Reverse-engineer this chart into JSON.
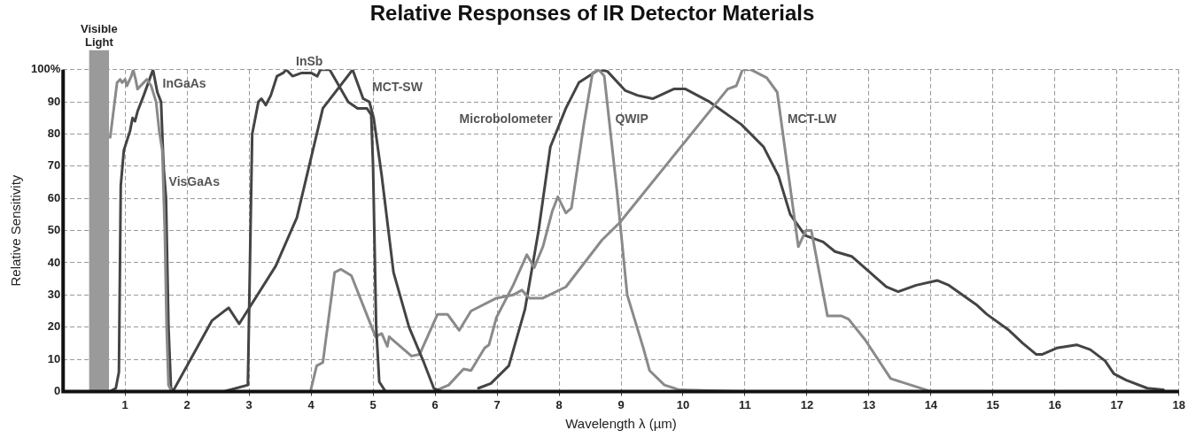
{
  "chart_data": {
    "type": "line",
    "title": "Relative Responses of IR Detector Materials",
    "xlabel": "Wavelength λ (µm)",
    "ylabel": "Relative Sensitivity",
    "xlim": [
      0,
      18
    ],
    "xticks": [
      1,
      2,
      3,
      4,
      5,
      6,
      7,
      8,
      9,
      10,
      11,
      12,
      13,
      14,
      15,
      16,
      17,
      18
    ],
    "ylim": [
      0,
      100
    ],
    "yticks": [
      0,
      10,
      20,
      30,
      40,
      50,
      60,
      70,
      80,
      90,
      {
        "value": 100,
        "label": "100%"
      }
    ],
    "grid": true,
    "marker": "none",
    "line_style": "solid",
    "bands": [
      {
        "axis": "x",
        "from": 0.42,
        "to": 0.74,
        "label": "Visible Light",
        "color": "#9a9a9a"
      }
    ],
    "series": [
      {
        "color": "#8a8a8a",
        "x": [
          0.76,
          0.87,
          0.92,
          0.95,
          1.0,
          1.03,
          1.1,
          1.13,
          1.17,
          1.2,
          1.3,
          1.35,
          1.42,
          1.5,
          1.55,
          1.6,
          1.64,
          1.67,
          1.7,
          1.75
        ],
        "values": [
          79,
          96,
          97,
          96,
          97,
          95,
          98,
          100,
          97,
          94,
          96,
          97,
          95,
          90,
          81,
          75,
          50,
          20,
          2,
          0
        ]
      },
      {
        "color": "#444444",
        "x": [
          0.76,
          0.85,
          0.9,
          0.93,
          0.98,
          1.08,
          1.12,
          1.16,
          1.2,
          1.3,
          1.45,
          1.52,
          1.58,
          1.62,
          1.66,
          1.7,
          1.74,
          1.8
        ],
        "values": [
          0,
          1,
          6,
          64,
          75,
          81,
          85,
          84,
          87,
          92,
          100,
          93,
          90,
          70,
          60,
          20,
          1,
          0
        ]
      },
      {
        "color": "#444444",
        "x": [
          1.77,
          2.4,
          2.67,
          2.84,
          3.43,
          3.77,
          4.19,
          4.67,
          4.84,
          4.94,
          5.01,
          5.14,
          5.33,
          5.58,
          5.82,
          5.98,
          6.1
        ],
        "values": [
          0,
          22,
          26,
          21,
          39,
          54,
          88,
          100,
          91,
          90,
          85,
          67,
          37,
          20,
          9,
          1,
          0
        ]
      },
      {
        "color": "#444444",
        "x": [
          2.6,
          2.98,
          3.05,
          3.15,
          3.2,
          3.27,
          3.35,
          3.45,
          3.55,
          3.6,
          3.7,
          3.85,
          4.0,
          4.1,
          4.15,
          4.3,
          4.45,
          4.6,
          4.75,
          4.9,
          4.97,
          5.0,
          5.05,
          5.1,
          5.2,
          5.5
        ],
        "values": [
          0,
          2,
          80,
          90,
          91,
          89,
          92,
          98,
          99,
          100,
          98,
          99,
          99,
          98,
          100,
          100,
          95,
          90,
          88,
          88,
          86,
          70,
          20,
          3,
          0,
          0
        ]
      },
      {
        "color": "#8a8a8a",
        "x": [
          3.99,
          4.09,
          4.19,
          4.38,
          4.48,
          4.65,
          5.04,
          5.14,
          5.23,
          5.26,
          5.62,
          5.75,
          6.04,
          6.2,
          6.39,
          6.58,
          6.99,
          7.26,
          7.4,
          7.52,
          7.74,
          8.11,
          8.69,
          8.98,
          10.72,
          10.86,
          10.96,
          11.1,
          11.35,
          11.52,
          11.86,
          11.98,
          12.07,
          12.33,
          12.55,
          12.67,
          12.94,
          13.35,
          14.0
        ],
        "values": [
          0,
          8,
          9,
          37,
          38,
          36,
          17,
          18,
          14,
          17,
          11,
          11.5,
          24,
          24,
          19,
          25,
          29,
          30,
          31.5,
          29,
          29,
          32.5,
          47,
          52.5,
          94,
          95,
          100,
          100,
          97.5,
          93,
          45,
          50,
          50,
          23.5,
          23.5,
          22.5,
          16,
          4,
          0
        ]
      },
      {
        "color": "#8a8a8a",
        "x": [
          5.98,
          6.22,
          6.46,
          6.58,
          6.8,
          6.87,
          6.99,
          7.26,
          7.48,
          7.6,
          7.74,
          7.89,
          7.98,
          8.11,
          8.2,
          8.4,
          8.54,
          8.64,
          8.73,
          8.93,
          9.1,
          9.36,
          9.46,
          9.7,
          9.94,
          10.96
        ],
        "values": [
          0,
          2,
          7,
          6.5,
          13.5,
          14.5,
          23,
          33,
          42.5,
          38.5,
          45,
          56,
          60.5,
          55.5,
          57,
          83,
          99,
          100,
          98,
          63,
          30,
          13.5,
          6.5,
          2,
          0.5,
          0
        ]
      },
      {
        "color": "#444444",
        "x": [
          6.7,
          6.9,
          7.19,
          7.45,
          7.67,
          7.86,
          8.11,
          8.32,
          8.64,
          8.78,
          9.07,
          9.27,
          9.51,
          9.85,
          10.04,
          10.43,
          10.94,
          11.3,
          11.54,
          11.73,
          11.97,
          12.26,
          12.45,
          12.72,
          13.28,
          13.47,
          13.76,
          14.1,
          14.29,
          14.73,
          14.9,
          15.26,
          15.48,
          15.7,
          15.79,
          16.03,
          16.35,
          16.57,
          16.81,
          16.95,
          17.15,
          17.49,
          17.75
        ],
        "values": [
          1,
          2.5,
          8,
          25.5,
          50,
          76,
          88,
          96,
          100,
          99.5,
          93.5,
          92,
          91,
          94,
          94,
          90,
          83,
          76,
          67,
          55,
          48.5,
          46.5,
          43.5,
          42,
          32.5,
          31,
          33,
          34.5,
          33,
          27,
          24,
          19,
          15,
          11.5,
          11.5,
          13.5,
          14.5,
          13,
          9.5,
          5.5,
          3.5,
          1,
          0.5
        ]
      }
    ],
    "annotations": [
      {
        "text": "InGaAs",
        "x": 1.52,
        "y": 93
      },
      {
        "text": "VisGaAs",
        "x": 1.62,
        "y": 62.5
      },
      {
        "text": "InSb",
        "x": 3.67,
        "y": 100
      },
      {
        "text": "MCT-SW",
        "x": 4.9,
        "y": 92
      },
      {
        "text": "Microbolometer",
        "x": 7.98,
        "y": 82
      },
      {
        "text": "QWIP",
        "x": 8.82,
        "y": 82
      },
      {
        "text": "MCT-LW",
        "x": 11.6,
        "y": 82
      }
    ]
  }
}
